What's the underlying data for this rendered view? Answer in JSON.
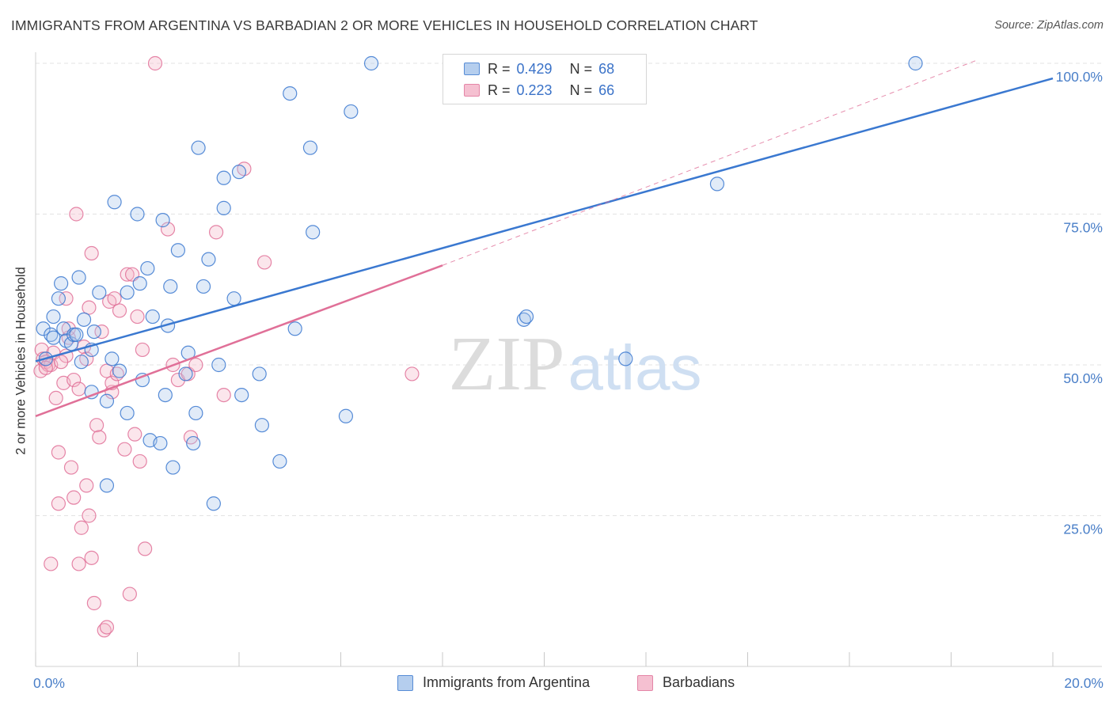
{
  "title": "IMMIGRANTS FROM ARGENTINA VS BARBADIAN 2 OR MORE VEHICLES IN HOUSEHOLD CORRELATION CHART",
  "source": "Source: ZipAtlas.com",
  "watermark": {
    "zip": "ZIP",
    "atlas": "atlas"
  },
  "legend": {
    "rows": [
      {
        "r_label": "R =",
        "r_value": "0.429",
        "n_label": "N =",
        "n_value": "68"
      },
      {
        "r_label": "R =",
        "r_value": "0.223",
        "n_label": "N =",
        "n_value": "66"
      }
    ]
  },
  "colors": {
    "blue": "#3a78d0",
    "blue_fill": "#a9c6ec",
    "pink": "#e07098",
    "pink_fill": "#f4b6c9",
    "grid": "#e3e3e3",
    "tick_text": "#4a7fc8"
  },
  "chart_data": {
    "type": "scatter",
    "title": "IMMIGRANTS FROM ARGENTINA VS BARBADIAN 2 OR MORE VEHICLES IN HOUSEHOLD CORRELATION CHART",
    "xlabel": "",
    "ylabel": "2 or more Vehicles in Household",
    "xlim": [
      0,
      20
    ],
    "ylim": [
      0,
      100
    ],
    "x_tick_labels": [
      "0.0%",
      "20.0%"
    ],
    "y_ticks": [
      25,
      50,
      75,
      100
    ],
    "y_tick_labels": [
      "25.0%",
      "50.0%",
      "75.0%",
      "100.0%"
    ],
    "grid": true,
    "legend_position": "bottom",
    "series": [
      {
        "name": "Immigrants from Argentina",
        "color": "#3a78d0",
        "trend": {
          "x": [
            0,
            20
          ],
          "y": [
            50.6,
            97.5
          ]
        },
        "points": [
          [
            0.15,
            56
          ],
          [
            0.2,
            51
          ],
          [
            0.3,
            55
          ],
          [
            0.35,
            58
          ],
          [
            0.35,
            54.5
          ],
          [
            0.45,
            61
          ],
          [
            0.5,
            63.5
          ],
          [
            0.55,
            56
          ],
          [
            0.6,
            54
          ],
          [
            0.7,
            53.5
          ],
          [
            0.75,
            55
          ],
          [
            0.85,
            64.5
          ],
          [
            0.8,
            55
          ],
          [
            0.9,
            50.5
          ],
          [
            0.95,
            57.5
          ],
          [
            1.1,
            52.5
          ],
          [
            1.15,
            55.5
          ],
          [
            1.1,
            45.5
          ],
          [
            1.25,
            62
          ],
          [
            1.4,
            44
          ],
          [
            1.4,
            30
          ],
          [
            1.5,
            51
          ],
          [
            1.55,
            77
          ],
          [
            1.65,
            49
          ],
          [
            1.8,
            42
          ],
          [
            1.8,
            62
          ],
          [
            2.0,
            75
          ],
          [
            2.05,
            63.5
          ],
          [
            2.1,
            47.5
          ],
          [
            2.2,
            66
          ],
          [
            2.25,
            37.5
          ],
          [
            2.3,
            58
          ],
          [
            2.45,
            37
          ],
          [
            2.5,
            74
          ],
          [
            2.55,
            45
          ],
          [
            2.6,
            56.5
          ],
          [
            2.65,
            63
          ],
          [
            2.7,
            33
          ],
          [
            2.8,
            69
          ],
          [
            2.95,
            48.5
          ],
          [
            3.0,
            52
          ],
          [
            3.1,
            37
          ],
          [
            3.15,
            42
          ],
          [
            3.2,
            86
          ],
          [
            3.3,
            63
          ],
          [
            3.4,
            67.5
          ],
          [
            3.5,
            27
          ],
          [
            3.6,
            50
          ],
          [
            3.7,
            81
          ],
          [
            3.7,
            76
          ],
          [
            3.9,
            61
          ],
          [
            4.0,
            82
          ],
          [
            4.05,
            45
          ],
          [
            4.4,
            48.5
          ],
          [
            4.45,
            40
          ],
          [
            4.8,
            34
          ],
          [
            5.0,
            95
          ],
          [
            5.1,
            56
          ],
          [
            5.4,
            86
          ],
          [
            5.45,
            72
          ],
          [
            6.1,
            41.5
          ],
          [
            6.2,
            92
          ],
          [
            6.6,
            100
          ],
          [
            9.6,
            57.5
          ],
          [
            9.65,
            58
          ],
          [
            11.6,
            51
          ],
          [
            13.4,
            80
          ],
          [
            17.3,
            100
          ]
        ]
      },
      {
        "name": "Barbadians",
        "color": "#e07098",
        "trend": {
          "x": [
            0,
            8
          ],
          "y": [
            41.5,
            66.5
          ]
        },
        "trend_extension": {
          "x": [
            8,
            18.5
          ],
          "y": [
            66.5,
            100.5
          ]
        },
        "points": [
          [
            0.1,
            49
          ],
          [
            0.12,
            52.5
          ],
          [
            0.15,
            51
          ],
          [
            0.2,
            50.5
          ],
          [
            0.25,
            50
          ],
          [
            0.3,
            17
          ],
          [
            0.3,
            50
          ],
          [
            0.35,
            52
          ],
          [
            0.4,
            44.5
          ],
          [
            0.45,
            27
          ],
          [
            0.45,
            35.5
          ],
          [
            0.55,
            47
          ],
          [
            0.6,
            61
          ],
          [
            0.6,
            51.5
          ],
          [
            0.65,
            54.5
          ],
          [
            0.65,
            56
          ],
          [
            0.7,
            33
          ],
          [
            0.75,
            28
          ],
          [
            0.75,
            47.5
          ],
          [
            0.8,
            75
          ],
          [
            0.85,
            17
          ],
          [
            0.85,
            46
          ],
          [
            0.9,
            23
          ],
          [
            0.95,
            53
          ],
          [
            1.0,
            30
          ],
          [
            1.05,
            25
          ],
          [
            1.05,
            59.5
          ],
          [
            1.1,
            68.5
          ],
          [
            1.1,
            18
          ],
          [
            1.15,
            10.5
          ],
          [
            1.2,
            40
          ],
          [
            1.25,
            38
          ],
          [
            1.3,
            55.5
          ],
          [
            1.35,
            6
          ],
          [
            1.4,
            6.5
          ],
          [
            1.4,
            49
          ],
          [
            1.45,
            60.5
          ],
          [
            1.5,
            45.5
          ],
          [
            1.5,
            47
          ],
          [
            1.55,
            61
          ],
          [
            1.6,
            48.5
          ],
          [
            1.65,
            59
          ],
          [
            1.75,
            36
          ],
          [
            1.8,
            65
          ],
          [
            1.85,
            12
          ],
          [
            1.9,
            65
          ],
          [
            1.95,
            38.5
          ],
          [
            2.0,
            58
          ],
          [
            2.05,
            34
          ],
          [
            2.1,
            52.5
          ],
          [
            2.15,
            19.5
          ],
          [
            2.35,
            100
          ],
          [
            2.6,
            72.5
          ],
          [
            2.7,
            50
          ],
          [
            2.8,
            47.5
          ],
          [
            3.0,
            48.5
          ],
          [
            3.05,
            38
          ],
          [
            3.15,
            50
          ],
          [
            3.55,
            72
          ],
          [
            3.7,
            45
          ],
          [
            4.1,
            82.5
          ],
          [
            4.5,
            67
          ],
          [
            7.4,
            48.5
          ],
          [
            0.2,
            49.5
          ],
          [
            0.5,
            50.5
          ],
          [
            1.0,
            51
          ]
        ]
      }
    ]
  }
}
